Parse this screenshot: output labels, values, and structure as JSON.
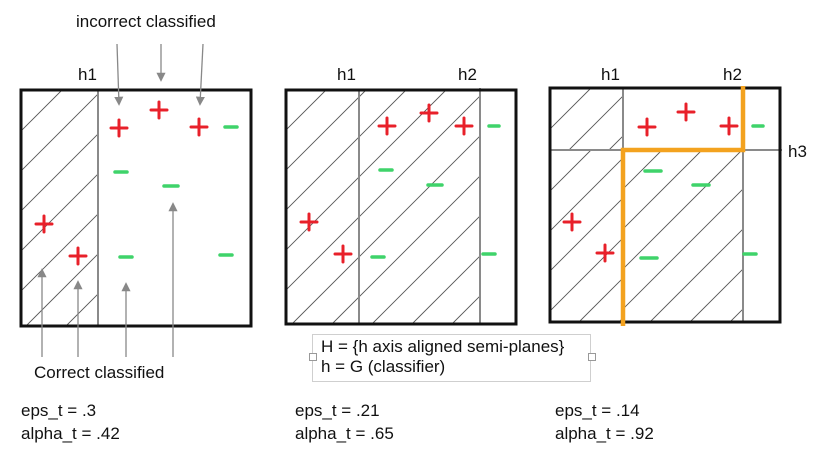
{
  "annotations": {
    "incorrect": "incorrect classified",
    "correct": "Correct classified"
  },
  "panels": [
    {
      "labels": [
        "h1"
      ],
      "stats": {
        "eps": "eps_t = .3",
        "alpha": "alpha_t = .42"
      }
    },
    {
      "labels": [
        "h1",
        "h2"
      ],
      "stats": {
        "eps": "eps_t = .21",
        "alpha": "alpha_t = .65"
      }
    },
    {
      "labels": [
        "h1",
        "h2",
        "h3"
      ],
      "stats": {
        "eps": "eps_t = .14",
        "alpha": "alpha_t = .92"
      }
    }
  ],
  "legend": {
    "line1": "H = {h axis aligned semi-planes}",
    "line2": "h = G (classifier)"
  },
  "colors": {
    "plus": "#e8202a",
    "minus": "#3fd36a",
    "boundary": "#f3a21f",
    "hatch": "#555555",
    "divider": "#8a8a8a",
    "frame": "#111111"
  }
}
